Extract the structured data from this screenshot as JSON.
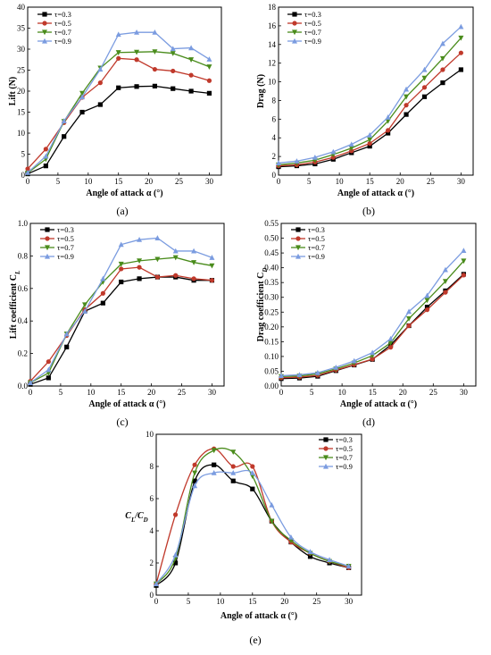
{
  "chart_data": [
    {
      "id": "a",
      "type": "line",
      "caption": "(a)",
      "xlabel": "Angle of attack α (°)",
      "ylabel": "Lift (N)",
      "xlim": [
        0,
        32
      ],
      "ylim": [
        0,
        40
      ],
      "xticks": [
        0,
        5,
        10,
        15,
        20,
        25,
        30
      ],
      "yticks": [
        0,
        5,
        10,
        15,
        20,
        25,
        30,
        35,
        40
      ],
      "legend": "top-left",
      "x": [
        0,
        3,
        6,
        9,
        12,
        15,
        18,
        21,
        24,
        27,
        30
      ],
      "series": [
        {
          "name": "τ=0.3",
          "color": "#000000",
          "marker": "square",
          "values": [
            0.3,
            2.2,
            9.2,
            15.0,
            16.8,
            20.8,
            21.1,
            21.2,
            20.6,
            20.0,
            19.5
          ]
        },
        {
          "name": "τ=0.5",
          "color": "#c0392b",
          "marker": "circle",
          "values": [
            1.5,
            6.2,
            12.5,
            18.5,
            22.0,
            27.8,
            27.5,
            25.2,
            24.8,
            23.8,
            22.5
          ]
        },
        {
          "name": "τ=0.7",
          "color": "#4a8c1c",
          "marker": "triangle-down",
          "values": [
            0.5,
            3.8,
            12.8,
            19.5,
            25.5,
            29.2,
            29.3,
            29.4,
            29.0,
            27.5,
            25.8
          ]
        },
        {
          "name": "τ=0.9",
          "color": "#7b9ce0",
          "marker": "triangle-up",
          "values": [
            0.6,
            4.5,
            12.9,
            18.6,
            25.2,
            33.5,
            34.0,
            34.0,
            30.1,
            30.3,
            27.6
          ]
        }
      ]
    },
    {
      "id": "b",
      "type": "line",
      "caption": "(b)",
      "xlabel": "Angle of attack α (°)",
      "ylabel": "Drag (N)",
      "xlim": [
        0,
        32
      ],
      "ylim": [
        0,
        18
      ],
      "xticks": [
        0,
        5,
        10,
        15,
        20,
        25,
        30
      ],
      "yticks": [
        0,
        2,
        4,
        6,
        8,
        10,
        12,
        14,
        16,
        18
      ],
      "legend": "top-left",
      "x": [
        0,
        3,
        6,
        9,
        12,
        15,
        18,
        21,
        24,
        27,
        30
      ],
      "series": [
        {
          "name": "τ=0.3",
          "color": "#000000",
          "marker": "square",
          "values": [
            0.9,
            1.0,
            1.2,
            1.7,
            2.4,
            3.1,
            4.5,
            6.5,
            8.4,
            9.9,
            11.3
          ]
        },
        {
          "name": "τ=0.5",
          "color": "#c0392b",
          "marker": "circle",
          "values": [
            1.0,
            1.1,
            1.4,
            1.9,
            2.6,
            3.4,
            4.8,
            7.5,
            9.4,
            11.3,
            13.1
          ]
        },
        {
          "name": "τ=0.7",
          "color": "#4a8c1c",
          "marker": "triangle-down",
          "values": [
            1.1,
            1.3,
            1.6,
            2.2,
            2.9,
            3.8,
            5.8,
            8.4,
            10.4,
            12.5,
            14.7
          ]
        },
        {
          "name": "τ=0.9",
          "color": "#7b9ce0",
          "marker": "triangle-up",
          "values": [
            1.3,
            1.5,
            1.9,
            2.5,
            3.3,
            4.3,
            6.2,
            9.2,
            11.3,
            14.1,
            15.9
          ]
        }
      ]
    },
    {
      "id": "c",
      "type": "line",
      "caption": "(c)",
      "xlabel": "Angle of attack α (°)",
      "ylabel": "Lift coefficient C",
      "ylabel_sub": "L",
      "xlim": [
        0,
        32
      ],
      "ylim": [
        0,
        1.0
      ],
      "xticks": [
        0,
        5,
        10,
        15,
        20,
        25,
        30
      ],
      "yticks": [
        0.0,
        0.2,
        0.4,
        0.6,
        0.8,
        1.0
      ],
      "yticklabels": [
        "0.0",
        "0.2",
        "0.4",
        "0.6",
        "0.8",
        "1.0"
      ],
      "legend": "top-left",
      "x": [
        0,
        3,
        6,
        9,
        12,
        15,
        18,
        21,
        24,
        27,
        30
      ],
      "series": [
        {
          "name": "τ=0.3",
          "color": "#000000",
          "marker": "square",
          "values": [
            0.01,
            0.05,
            0.24,
            0.46,
            0.51,
            0.64,
            0.66,
            0.67,
            0.67,
            0.65,
            0.65
          ]
        },
        {
          "name": "τ=0.5",
          "color": "#c0392b",
          "marker": "circle",
          "values": [
            0.03,
            0.15,
            0.31,
            0.47,
            0.57,
            0.72,
            0.73,
            0.67,
            0.68,
            0.66,
            0.65
          ]
        },
        {
          "name": "τ=0.7",
          "color": "#4a8c1c",
          "marker": "triangle-down",
          "values": [
            0.02,
            0.08,
            0.32,
            0.5,
            0.64,
            0.75,
            0.77,
            0.78,
            0.79,
            0.76,
            0.74
          ]
        },
        {
          "name": "τ=0.9",
          "color": "#7b9ce0",
          "marker": "triangle-up",
          "values": [
            0.02,
            0.1,
            0.32,
            0.46,
            0.66,
            0.87,
            0.9,
            0.91,
            0.83,
            0.83,
            0.79
          ]
        }
      ]
    },
    {
      "id": "d",
      "type": "line",
      "caption": "(d)",
      "xlabel": "Angle of attack α (°)",
      "ylabel": "Drag coefficient C",
      "ylabel_sub": "D",
      "xlim": [
        0,
        32
      ],
      "ylim": [
        0,
        0.55
      ],
      "xticks": [
        0,
        5,
        10,
        15,
        20,
        25,
        30
      ],
      "yticks": [
        0,
        0.05,
        0.1,
        0.15,
        0.2,
        0.25,
        0.3,
        0.35,
        0.4,
        0.45,
        0.5,
        0.55
      ],
      "yticklabels": [
        "0.00",
        "0.05",
        "0.10",
        "0.15",
        "0.20",
        "0.25",
        "0.30",
        "0.35",
        "0.40",
        "0.45",
        "0.50",
        "0.55"
      ],
      "legend": "top-left",
      "x": [
        0,
        3,
        6,
        9,
        12,
        15,
        18,
        21,
        24,
        27,
        30
      ],
      "series": [
        {
          "name": "τ=0.3",
          "color": "#000000",
          "marker": "square",
          "values": [
            0.025,
            0.027,
            0.033,
            0.052,
            0.071,
            0.09,
            0.139,
            0.204,
            0.267,
            0.322,
            0.378
          ]
        },
        {
          "name": "τ=0.5",
          "color": "#c0392b",
          "marker": "circle",
          "values": [
            0.028,
            0.03,
            0.036,
            0.054,
            0.072,
            0.091,
            0.131,
            0.204,
            0.258,
            0.317,
            0.375
          ]
        },
        {
          "name": "τ=0.7",
          "color": "#4a8c1c",
          "marker": "triangle-down",
          "values": [
            0.032,
            0.034,
            0.041,
            0.058,
            0.078,
            0.103,
            0.146,
            0.228,
            0.29,
            0.354,
            0.423
          ]
        },
        {
          "name": "τ=0.9",
          "color": "#7b9ce0",
          "marker": "triangle-up",
          "values": [
            0.035,
            0.038,
            0.045,
            0.063,
            0.085,
            0.113,
            0.16,
            0.252,
            0.306,
            0.393,
            0.458
          ]
        }
      ]
    },
    {
      "id": "e",
      "type": "line",
      "smooth": true,
      "caption": "(e)",
      "xlabel": "Angle of attack α (°)",
      "ylabel": "C",
      "ylabel_sub": "L",
      "ylabel_mid": "/C",
      "ylabel_sub2": "D",
      "xlim": [
        0,
        32
      ],
      "ylim": [
        0,
        10
      ],
      "xticks": [
        0,
        5,
        10,
        15,
        20,
        25,
        30
      ],
      "yticks": [
        0,
        2,
        4,
        6,
        8,
        10
      ],
      "legend": "top-right",
      "x": [
        0,
        3,
        6,
        9,
        12,
        15,
        18,
        21,
        24,
        27,
        30
      ],
      "series": [
        {
          "name": "τ=0.3",
          "color": "#000000",
          "marker": "square",
          "values": [
            0.6,
            2.0,
            7.1,
            8.1,
            7.1,
            6.6,
            4.6,
            3.3,
            2.4,
            2.0,
            1.7
          ]
        },
        {
          "name": "τ=0.5",
          "color": "#c0392b",
          "marker": "circle",
          "values": [
            0.7,
            5.0,
            8.1,
            9.1,
            8.0,
            8.0,
            4.6,
            3.3,
            2.6,
            2.1,
            1.7
          ]
        },
        {
          "name": "τ=0.7",
          "color": "#4a8c1c",
          "marker": "triangle-down",
          "values": [
            0.7,
            2.3,
            7.6,
            9.0,
            8.9,
            7.4,
            4.6,
            3.4,
            2.6,
            2.1,
            1.8
          ]
        },
        {
          "name": "τ=0.9",
          "color": "#7b9ce0",
          "marker": "triangle-up",
          "values": [
            0.7,
            2.5,
            6.8,
            7.6,
            7.6,
            7.6,
            5.6,
            3.6,
            2.7,
            2.2,
            1.8
          ]
        }
      ]
    }
  ]
}
